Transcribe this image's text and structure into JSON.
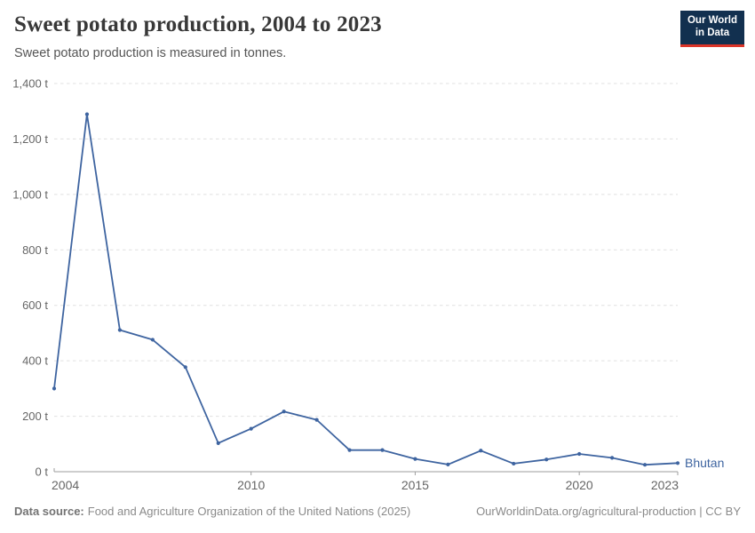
{
  "header": {
    "title": "Sweet potato production, 2004 to 2023",
    "subtitle": "Sweet potato production is measured in tonnes."
  },
  "logo": {
    "line1": "Our World",
    "line2": "in Data",
    "background_color": "#12304f",
    "accent_color": "#dc3529"
  },
  "chart_data": {
    "type": "line",
    "title": "Sweet potato production, 2004 to 2023",
    "unit": "tonnes",
    "x": [
      2004,
      2005,
      2006,
      2007,
      2008,
      2009,
      2010,
      2011,
      2012,
      2013,
      2014,
      2015,
      2016,
      2017,
      2018,
      2019,
      2020,
      2021,
      2022,
      2023
    ],
    "series": [
      {
        "name": "Bhutan",
        "color": "#3e64a0",
        "values": [
          300,
          1289,
          511,
          476,
          377,
          103,
          155,
          217,
          187,
          78,
          78,
          46,
          26,
          76,
          29,
          44,
          64,
          50,
          25,
          31
        ]
      }
    ],
    "ylim": [
      0,
      1400
    ],
    "yticks": [
      0,
      200,
      400,
      600,
      800,
      1000,
      1200,
      1400
    ],
    "ytick_labels": [
      "0 t",
      "200 t",
      "400 t",
      "600 t",
      "800 t",
      "1,000 t",
      "1,200 t",
      "1,400 t"
    ],
    "xticks": [
      2004,
      2010,
      2015,
      2020,
      2023
    ],
    "xtick_labels": [
      "2004",
      "2010",
      "2015",
      "2020",
      "2023"
    ],
    "grid": "horizontal-dashed",
    "legend_position": "end-of-line",
    "axis_color": "#9e9e9e",
    "gridline_color": "#e0e0e0",
    "tick_label_color": "#666666"
  },
  "footer": {
    "source_label": "Data source:",
    "source_text": "Food and Agriculture Organization of the United Nations (2025)",
    "attribution": "OurWorldinData.org/agricultural-production | CC BY"
  }
}
